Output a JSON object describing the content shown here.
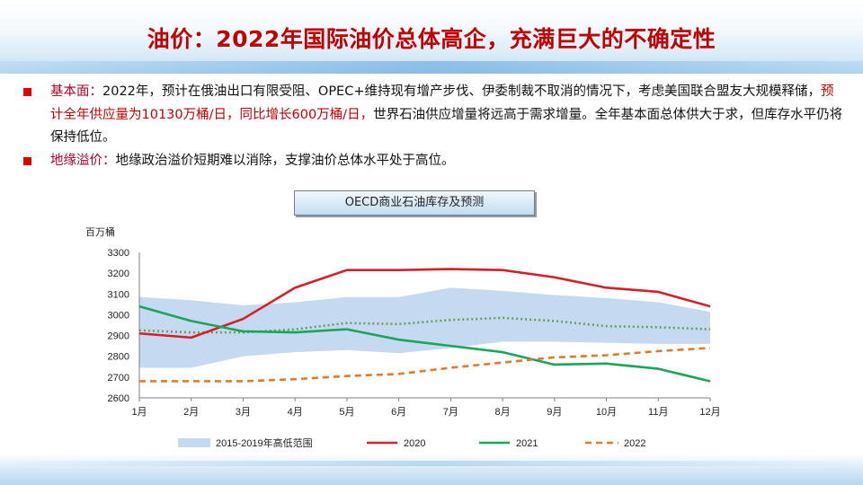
{
  "title": "油价：2022年国际油价总体高企，充满巨大的不确定性",
  "bullets": [
    {
      "label": "基本面：",
      "text1": "2022年，预计在俄油出口有限受阻、OPEC+维持现有增产步伐、伊委制裁不取消的情况下，考虑美国联合盟友大规模释储，",
      "highlight": "预计全年供应量为10130万桶/日，同比增长600万桶/日，",
      "text2": "世界石油供应增量将远高于需求增量。全年基本面总体供大于求，但库存水平仍将保持低位。"
    },
    {
      "label": "地缘溢价：",
      "text1": "地缘政治溢价短期难以消除，支撑油价总体水平处于高位。"
    }
  ],
  "colors": {
    "title": "#c00000",
    "band": "#c5d9f0",
    "s2020": "#d42027",
    "s2021": "#1aa55a",
    "s2022": "#e07b28",
    "avg": "#6a9e5a"
  },
  "chart_data": {
    "type": "line",
    "title": "OECD商业石油库存及预测",
    "ylabel": "百万桶",
    "ylim": [
      2600,
      3300
    ],
    "yticks": [
      2600,
      2700,
      2800,
      2900,
      3000,
      3100,
      3200,
      3300
    ],
    "categories": [
      "1月",
      "2月",
      "3月",
      "4月",
      "5月",
      "6月",
      "7月",
      "8月",
      "9月",
      "10月",
      "11月",
      "12月"
    ],
    "range_band": {
      "name": "2015-2019年高低范围",
      "low": [
        2745,
        2745,
        2800,
        2820,
        2830,
        2815,
        2840,
        2870,
        2870,
        2865,
        2860,
        2860
      ],
      "high": [
        3085,
        3070,
        3045,
        3060,
        3085,
        3085,
        3130,
        3115,
        3095,
        3080,
        3060,
        3015
      ]
    },
    "average_line": [
      2925,
      2915,
      2915,
      2930,
      2960,
      2955,
      2975,
      2985,
      2970,
      2945,
      2940,
      2930
    ],
    "series": [
      {
        "name": "2020",
        "style": "solid",
        "values": [
          2910,
          2890,
          2980,
          3130,
          3215,
          3215,
          3220,
          3215,
          3180,
          3130,
          3110,
          3040
        ]
      },
      {
        "name": "2021",
        "style": "solid",
        "values": [
          3040,
          2970,
          2920,
          2915,
          2930,
          2880,
          2850,
          2820,
          2760,
          2765,
          2740,
          2680
        ]
      },
      {
        "name": "2022",
        "style": "dashed",
        "values": [
          2680,
          2680,
          2680,
          2690,
          2705,
          2715,
          2745,
          2770,
          2795,
          2805,
          2825,
          2840
        ]
      }
    ],
    "legend": [
      "2015-2019年高低范围",
      "2020",
      "2021",
      "2022"
    ]
  }
}
